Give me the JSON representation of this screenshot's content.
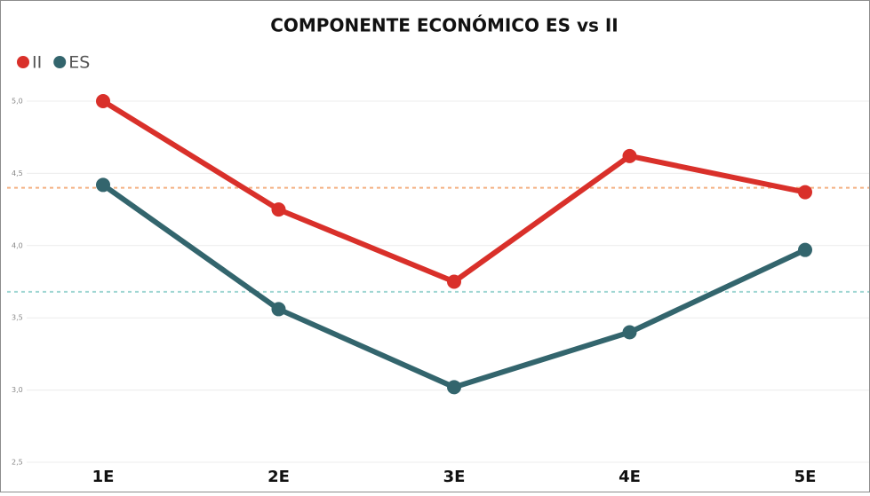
{
  "chart_data": {
    "type": "line",
    "title": "COMPONENTE ECONÓMICO ES vs II",
    "categories": [
      "1E",
      "2E",
      "3E",
      "4E",
      "5E"
    ],
    "series": [
      {
        "name": "II",
        "color": "#d9302a",
        "values": [
          5.0,
          4.25,
          3.75,
          4.62,
          4.37
        ]
      },
      {
        "name": "ES",
        "color": "#33656d",
        "values": [
          4.42,
          3.56,
          3.02,
          3.4,
          3.97
        ]
      }
    ],
    "reference_lines": [
      {
        "value": 4.4,
        "color": "#f4b183"
      },
      {
        "value": 3.68,
        "color": "#9fd6d2"
      }
    ],
    "ylim": [
      2.5,
      5.0
    ],
    "yticks": [
      {
        "value": 2.5,
        "label": "2,5"
      },
      {
        "value": 3.0,
        "label": "3,0"
      },
      {
        "value": 3.5,
        "label": "3,5"
      },
      {
        "value": 4.0,
        "label": "4,0"
      },
      {
        "value": 4.5,
        "label": "4,5"
      },
      {
        "value": 5.0,
        "label": "5,0"
      }
    ],
    "grid": true,
    "legend": "top-left"
  }
}
